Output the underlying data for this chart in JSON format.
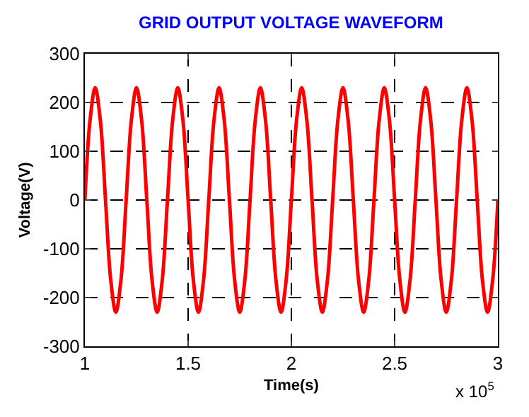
{
  "chart_data": {
    "type": "line",
    "title": "GRID OUTPUT VOLTAGE WAVEFORM",
    "xlabel": "Time(s)",
    "ylabel": "Voltage(V)",
    "annotations": [
      "x 10$^{5}$"
    ],
    "x": [
      1,
      1.025,
      1.05,
      1.075,
      1.1,
      1.125,
      1.15,
      1.175,
      1.2,
      1.225,
      1.25,
      1.275,
      1.3,
      1.325,
      1.35,
      1.375,
      1.4,
      1.425,
      1.45,
      1.475,
      1.5,
      1.525,
      1.55,
      1.575,
      1.6,
      1.625,
      1.65,
      1.675,
      1.7,
      1.725,
      1.75,
      1.775,
      1.8,
      1.825,
      1.85,
      1.875,
      1.9,
      1.925,
      1.95,
      1.975,
      2,
      2.025,
      2.05,
      2.075,
      2.1,
      2.125,
      2.15,
      2.175,
      2.2,
      2.225,
      2.25,
      2.275,
      2.3,
      2.325,
      2.35,
      2.375,
      2.4,
      2.425,
      2.45,
      2.475,
      2.5,
      2.525,
      2.55,
      2.575,
      2.6,
      2.625,
      2.65,
      2.675,
      2.7,
      2.725,
      2.75,
      2.775,
      2.8,
      2.825,
      2.85,
      2.875,
      2.9,
      2.925,
      2.95,
      2.975,
      3
    ],
    "series": [
      {
        "color": "#ff0000",
        "values": [
          0,
          163,
          230,
          163,
          0,
          -163,
          -230,
          -163,
          0,
          163,
          230,
          163,
          0,
          -163,
          -230,
          -163,
          0,
          163,
          230,
          163,
          0,
          -163,
          -230,
          -163,
          0,
          163,
          230,
          163,
          0,
          -163,
          -230,
          -163,
          0,
          163,
          230,
          163,
          0,
          -163,
          -230,
          -163,
          0,
          163,
          230,
          163,
          0,
          -163,
          -230,
          -163,
          0,
          163,
          230,
          163,
          0,
          -163,
          -230,
          -163,
          0,
          163,
          230,
          163,
          0,
          -163,
          -230,
          -163,
          0,
          163,
          230,
          163,
          0,
          -163,
          -230,
          -163,
          0,
          163,
          230,
          163,
          0,
          -163,
          -230,
          -163,
          0
        ]
      }
    ],
    "xlim": [
      1,
      3
    ],
    "xticks": [
      1,
      1.5,
      2,
      2.5,
      3
    ],
    "ylim": [
      -300,
      300
    ],
    "yticks": [
      -300,
      -200,
      -100,
      0,
      100,
      200,
      300
    ],
    "grid": true,
    "line_style": "solid"
  }
}
